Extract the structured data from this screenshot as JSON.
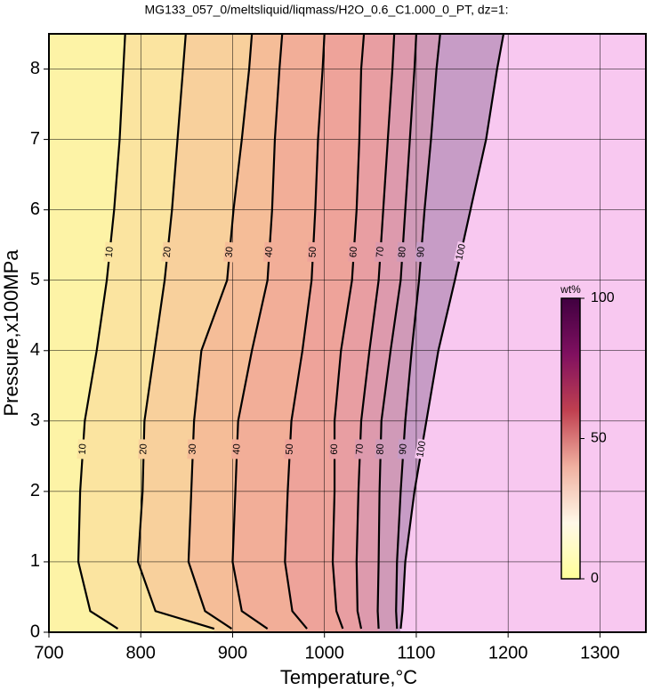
{
  "chart_data": {
    "type": "contour",
    "title": "MG133_057_0/meltsliquid/liqmass/H2O_0.6_C1.000_0_PT, dz=1:",
    "xlabel": "Temperature,°C",
    "ylabel": "Pressure,x100MPa",
    "xlim": [
      700,
      1350
    ],
    "xticks": [
      700,
      800,
      900,
      1000,
      1100,
      1200,
      1300
    ],
    "ylim": [
      0,
      8.5
    ],
    "yticks": [
      0,
      1,
      2,
      3,
      4,
      5,
      6,
      7,
      8
    ],
    "grid": true,
    "pressures": [
      0.05,
      0.3,
      1,
      2,
      3,
      4,
      5,
      6,
      7,
      8,
      8.5
    ],
    "contours": [
      {
        "level": 10,
        "temperatures": [
          775,
          745,
          732,
          734,
          739,
          752,
          763,
          771,
          777,
          781,
          783
        ]
      },
      {
        "level": 20,
        "temperatures": [
          880,
          816,
          797,
          802,
          804,
          815,
          826,
          834,
          840,
          846,
          849
        ]
      },
      {
        "level": 30,
        "temperatures": [
          899,
          870,
          852,
          855,
          858,
          866,
          894,
          901,
          910,
          918,
          921
        ]
      },
      {
        "level": 40,
        "temperatures": [
          938,
          910,
          900,
          903,
          906,
          921,
          938,
          943,
          946,
          951,
          954
        ]
      },
      {
        "level": 50,
        "temperatures": [
          981,
          965,
          957,
          960,
          964,
          976,
          986,
          990,
          993,
          998,
          1000
        ]
      },
      {
        "level": 60,
        "temperatures": [
          1020,
          1013,
          1009,
          1011,
          1011,
          1018,
          1030,
          1035,
          1038,
          1040,
          1043
        ]
      },
      {
        "level": 70,
        "temperatures": [
          1040,
          1036,
          1035,
          1037,
          1040,
          1049,
          1059,
          1064,
          1069,
          1074,
          1076
        ]
      },
      {
        "level": 80,
        "temperatures": [
          1059,
          1058,
          1059,
          1060,
          1062,
          1072,
          1083,
          1088,
          1093,
          1098,
          1100
        ]
      },
      {
        "level": 90,
        "temperatures": [
          1079,
          1078,
          1079,
          1083,
          1088,
          1095,
          1103,
          1109,
          1116,
          1122,
          1126
        ]
      },
      {
        "level": 100,
        "temperatures": [
          1083,
          1085,
          1088,
          1098,
          1111,
          1124,
          1142,
          1159,
          1176,
          1188,
          1195
        ]
      }
    ],
    "fill_colors": [
      "#fdf3a6",
      "#fbe4a0",
      "#f8d09c",
      "#f5bd98",
      "#f2ae98",
      "#eea39a",
      "#e89ea2",
      "#dd9aad",
      "#d09ab8",
      "#c79cc6",
      "#f8c8f0"
    ],
    "colorbar": {
      "label": "wt%",
      "lim": [
        0,
        100
      ],
      "ticks": [
        0,
        50,
        100
      ],
      "colors": [
        "#ffff99",
        "#fff8e8",
        "#f0b0a0",
        "#c04050",
        "#801060",
        "#400040"
      ]
    }
  }
}
